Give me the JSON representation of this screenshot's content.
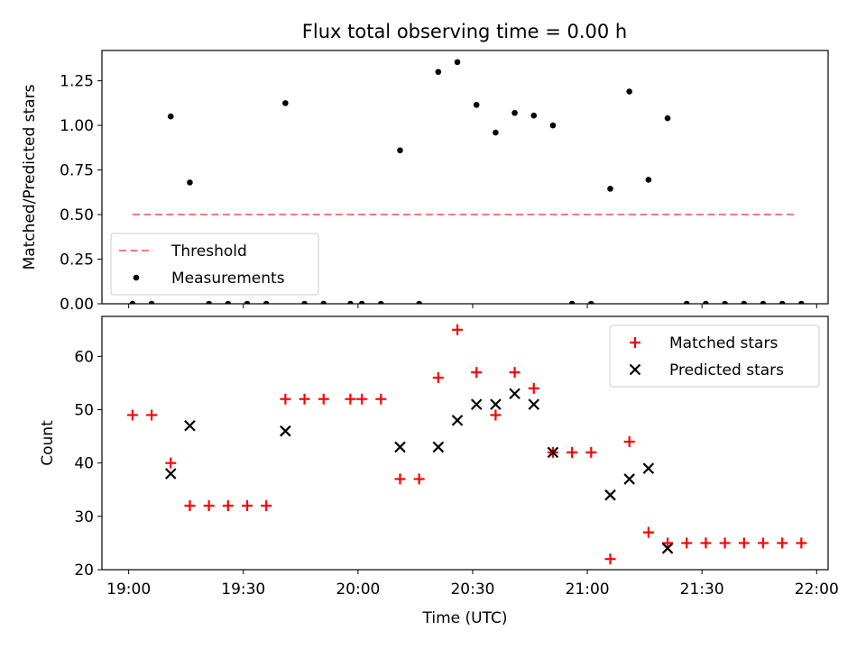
{
  "title": "Flux total observing time = 0.00 h",
  "chart_data": [
    {
      "type": "scatter",
      "panel": "top",
      "xlabel": "",
      "ylabel": "Matched/Predicted stars",
      "xlim": [
        "18:53",
        "22:03"
      ],
      "ylim": [
        0,
        1.42
      ],
      "yticks": [
        0.0,
        0.25,
        0.5,
        0.75,
        1.0,
        1.25
      ],
      "ytick_labels": [
        "0.00",
        "0.25",
        "0.50",
        "0.75",
        "1.00",
        "1.25"
      ],
      "legend_position": "lower-left",
      "threshold": {
        "name": "Threshold",
        "value": 0.5,
        "x_start": "19:01",
        "x_end": "21:54",
        "color": "#ff7777",
        "style": "dashed"
      },
      "series": [
        {
          "name": "Measurements",
          "color": "#000000",
          "marker": "dot",
          "points": [
            {
              "x": "19:01",
              "y": 0.0
            },
            {
              "x": "19:06",
              "y": 0.0
            },
            {
              "x": "19:11",
              "y": 1.05
            },
            {
              "x": "19:16",
              "y": 0.68
            },
            {
              "x": "19:21",
              "y": 0.0
            },
            {
              "x": "19:26",
              "y": 0.0
            },
            {
              "x": "19:31",
              "y": 0.0
            },
            {
              "x": "19:36",
              "y": 0.0
            },
            {
              "x": "19:41",
              "y": 1.125
            },
            {
              "x": "19:46",
              "y": 0.0
            },
            {
              "x": "19:51",
              "y": 0.0
            },
            {
              "x": "19:58",
              "y": 0.0
            },
            {
              "x": "20:01",
              "y": 0.0
            },
            {
              "x": "20:06",
              "y": 0.0
            },
            {
              "x": "20:11",
              "y": 0.86
            },
            {
              "x": "20:16",
              "y": 0.0
            },
            {
              "x": "20:21",
              "y": 1.3
            },
            {
              "x": "20:26",
              "y": 1.355
            },
            {
              "x": "20:31",
              "y": 1.115
            },
            {
              "x": "20:36",
              "y": 0.96
            },
            {
              "x": "20:41",
              "y": 1.07
            },
            {
              "x": "20:46",
              "y": 1.055
            },
            {
              "x": "20:51",
              "y": 1.0
            },
            {
              "x": "20:56",
              "y": 0.0
            },
            {
              "x": "21:01",
              "y": 0.0
            },
            {
              "x": "21:06",
              "y": 0.645
            },
            {
              "x": "21:11",
              "y": 1.19
            },
            {
              "x": "21:16",
              "y": 0.695
            },
            {
              "x": "21:21",
              "y": 1.04
            },
            {
              "x": "21:26",
              "y": 0.0
            },
            {
              "x": "21:31",
              "y": 0.0
            },
            {
              "x": "21:36",
              "y": 0.0
            },
            {
              "x": "21:41",
              "y": 0.0
            },
            {
              "x": "21:46",
              "y": 0.0
            },
            {
              "x": "21:51",
              "y": 0.0
            },
            {
              "x": "21:56",
              "y": 0.0
            }
          ]
        }
      ]
    },
    {
      "type": "scatter",
      "panel": "bottom",
      "xlabel": "Time (UTC)",
      "ylabel": "Count",
      "xlim": [
        "18:53",
        "22:03"
      ],
      "ylim": [
        20,
        67.5
      ],
      "yticks": [
        20,
        30,
        40,
        50,
        60
      ],
      "xticks": [
        "19:00",
        "19:30",
        "20:00",
        "20:30",
        "21:00",
        "21:30",
        "22:00"
      ],
      "legend_position": "top-right",
      "series": [
        {
          "name": "Matched stars",
          "color": "#ff0000",
          "marker": "plus",
          "points": [
            {
              "x": "19:01",
              "y": 49
            },
            {
              "x": "19:06",
              "y": 49
            },
            {
              "x": "19:11",
              "y": 40
            },
            {
              "x": "19:16",
              "y": 32
            },
            {
              "x": "19:21",
              "y": 32
            },
            {
              "x": "19:26",
              "y": 32
            },
            {
              "x": "19:31",
              "y": 32
            },
            {
              "x": "19:36",
              "y": 32
            },
            {
              "x": "19:41",
              "y": 52
            },
            {
              "x": "19:46",
              "y": 52
            },
            {
              "x": "19:51",
              "y": 52
            },
            {
              "x": "19:58",
              "y": 52
            },
            {
              "x": "20:01",
              "y": 52
            },
            {
              "x": "20:06",
              "y": 52
            },
            {
              "x": "20:11",
              "y": 37
            },
            {
              "x": "20:16",
              "y": 37
            },
            {
              "x": "20:21",
              "y": 56
            },
            {
              "x": "20:26",
              "y": 65
            },
            {
              "x": "20:31",
              "y": 57
            },
            {
              "x": "20:36",
              "y": 49
            },
            {
              "x": "20:41",
              "y": 57
            },
            {
              "x": "20:46",
              "y": 54
            },
            {
              "x": "20:51",
              "y": 42
            },
            {
              "x": "20:56",
              "y": 42
            },
            {
              "x": "21:01",
              "y": 42
            },
            {
              "x": "21:06",
              "y": 22
            },
            {
              "x": "21:11",
              "y": 44
            },
            {
              "x": "21:16",
              "y": 27
            },
            {
              "x": "21:21",
              "y": 25
            },
            {
              "x": "21:26",
              "y": 25
            },
            {
              "x": "21:31",
              "y": 25
            },
            {
              "x": "21:36",
              "y": 25
            },
            {
              "x": "21:41",
              "y": 25
            },
            {
              "x": "21:46",
              "y": 25
            },
            {
              "x": "21:51",
              "y": 25
            },
            {
              "x": "21:56",
              "y": 25
            }
          ]
        },
        {
          "name": "Predicted stars",
          "color": "#000000",
          "marker": "cross",
          "points": [
            {
              "x": "19:11",
              "y": 38
            },
            {
              "x": "19:16",
              "y": 47
            },
            {
              "x": "19:41",
              "y": 46
            },
            {
              "x": "20:11",
              "y": 43
            },
            {
              "x": "20:21",
              "y": 43
            },
            {
              "x": "20:26",
              "y": 48
            },
            {
              "x": "20:31",
              "y": 51
            },
            {
              "x": "20:36",
              "y": 51
            },
            {
              "x": "20:41",
              "y": 53
            },
            {
              "x": "20:46",
              "y": 51
            },
            {
              "x": "20:51",
              "y": 42
            },
            {
              "x": "21:06",
              "y": 34
            },
            {
              "x": "21:11",
              "y": 37
            },
            {
              "x": "21:16",
              "y": 39
            },
            {
              "x": "21:21",
              "y": 24
            }
          ]
        }
      ]
    }
  ]
}
